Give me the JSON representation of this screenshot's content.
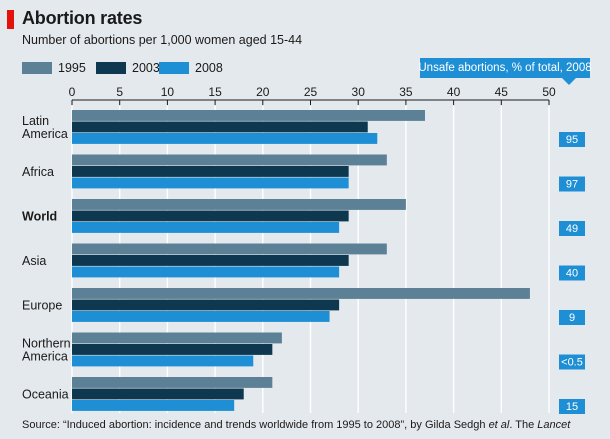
{
  "header": {
    "title": "Abortion rates",
    "subtitle": "Number of abortions per 1,000 women aged 15-44"
  },
  "legend": [
    {
      "name": "1995",
      "color": "#5c8196"
    },
    {
      "name": "2003",
      "color": "#0d3850"
    },
    {
      "name": "2008",
      "color": "#1f8fd5"
    }
  ],
  "side_panel": {
    "title": "Unsafe abortions, % of total, 2008",
    "color": "#1f8fd5"
  },
  "source": {
    "prefix": "Source: “Induced abortion: incidence and trends worldwide from 1995 to 2008”, by Gilda Sedgh ",
    "etal": "et al",
    "middle": ". The ",
    "journal": "Lancet"
  },
  "chart_data": {
    "type": "bar",
    "orientation": "horizontal",
    "title": "Abortion rates",
    "subtitle": "Number of abortions per 1,000 women aged 15-44",
    "categories": [
      "Latin America",
      "Africa",
      "World",
      "Asia",
      "Europe",
      "Northern America",
      "Oceania"
    ],
    "category_lines": [
      [
        "Latin",
        "America"
      ],
      [
        "Africa"
      ],
      [
        "World"
      ],
      [
        "Asia"
      ],
      [
        "Europe"
      ],
      [
        "Northern",
        "America"
      ],
      [
        "Oceania"
      ]
    ],
    "highlight_category": "World",
    "series": [
      {
        "name": "1995",
        "color": "#5c8196",
        "values": [
          37,
          33,
          35,
          33,
          48,
          22,
          21
        ]
      },
      {
        "name": "2003",
        "color": "#0d3850",
        "values": [
          31,
          29,
          29,
          29,
          28,
          21,
          18
        ]
      },
      {
        "name": "2008",
        "color": "#1f8fd5",
        "values": [
          32,
          29,
          28,
          28,
          27,
          19,
          17
        ]
      }
    ],
    "xlim": [
      0,
      50
    ],
    "xticks": [
      0,
      5,
      10,
      15,
      20,
      25,
      30,
      35,
      40,
      45,
      50
    ],
    "gridlines": true,
    "unsafe_abortions_pct_2008": [
      "95",
      "97",
      "49",
      "40",
      "9",
      "<0.5",
      "15"
    ]
  }
}
